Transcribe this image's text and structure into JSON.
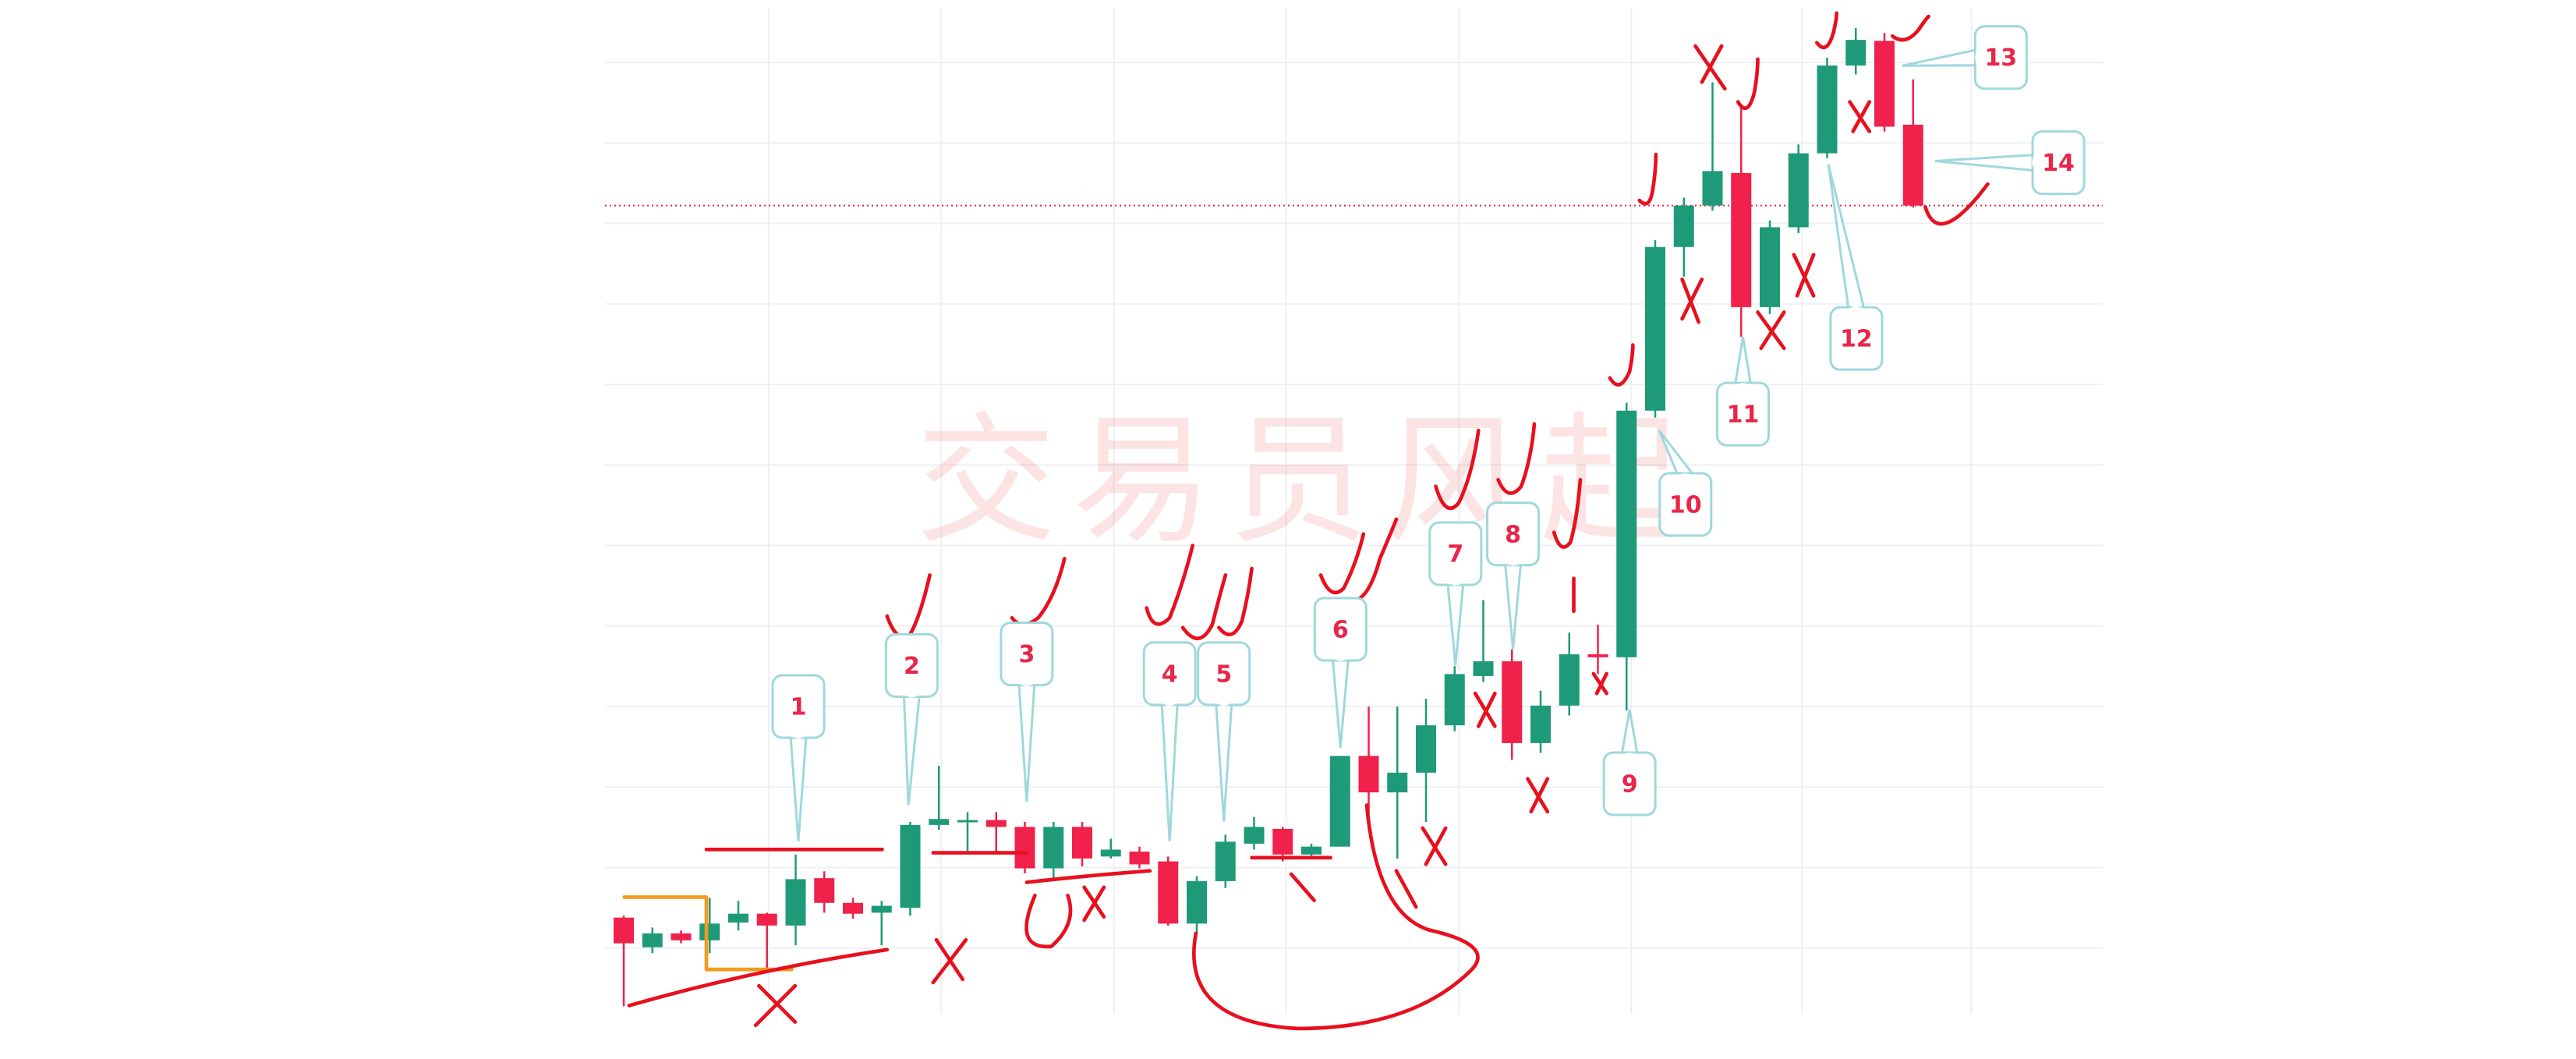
{
  "chart_data": {
    "type": "candlestick",
    "watermark": "交易员风起",
    "open": [
      10.3,
      7.3,
      8.7,
      8,
      9.8,
      10.7,
      9.5,
      14.3,
      11.8,
      10.8,
      11.3,
      19.7,
      20,
      20.2,
      19.5,
      15.3,
      19.5,
      16.5,
      17,
      16,
      9.7,
      14,
      17.8,
      19.3,
      16.7,
      17.5,
      26.7,
      23,
      25,
      29.8,
      34.8,
      36.3,
      28,
      31.8,
      37,
      36.7,
      61.7,
      78.3,
      82.5,
      85.8,
      72.2,
      80.3,
      87.8,
      96.7,
      99.2,
      90.7
    ],
    "high": [
      10.5,
      9.3,
      9,
      12.3,
      12,
      10.8,
      16.7,
      15,
      12.3,
      12,
      20,
      25.7,
      21,
      21,
      20,
      20,
      20,
      18.3,
      17.5,
      16.5,
      14.5,
      18.7,
      20.5,
      19.5,
      17.8,
      26.7,
      31.7,
      31.7,
      32.5,
      35.8,
      42.5,
      37.5,
      33.3,
      39.2,
      40,
      62.5,
      79,
      83.3,
      95,
      92.5,
      81,
      88.7,
      97.5,
      100.5,
      100,
      95.3
    ],
    "low": [
      1.3,
      6.7,
      7.7,
      6.7,
      9,
      5,
      7.5,
      10.8,
      10.2,
      7.5,
      10.5,
      19.2,
      17,
      17,
      14.8,
      14.2,
      15.5,
      16.3,
      15.3,
      9.5,
      8.7,
      13.3,
      17.2,
      16,
      16.3,
      17.5,
      19.2,
      16.3,
      20,
      29.2,
      34.2,
      26.3,
      27,
      30.8,
      35,
      31.3,
      61,
      75.3,
      82,
      69.2,
      71.5,
      79.7,
      87.3,
      95.8,
      90,
      82.3
    ],
    "close": [
      7.7,
      8.7,
      8,
      9.7,
      10.7,
      9.5,
      14.2,
      11.8,
      10.7,
      11.5,
      19.7,
      20.3,
      20.2,
      19.5,
      15.3,
      19.5,
      16.3,
      17.2,
      15.7,
      9.7,
      14,
      18,
      19.5,
      16.7,
      17.5,
      26.7,
      23,
      25,
      29.8,
      35,
      36.3,
      28,
      31.8,
      37,
      36.7,
      61.7,
      78.3,
      82.5,
      86,
      72.2,
      80.3,
      87.8,
      96.7,
      99.3,
      90.5,
      82.5
    ],
    "up_color": "#1f9a78",
    "down_color": "#f0214a",
    "ylim": [
      0,
      102
    ],
    "grid": true,
    "price_line": 82.5,
    "price_line_color": "#e8264a",
    "callouts": [
      "1",
      "2",
      "3",
      "4",
      "5",
      "6",
      "7",
      "8",
      "9",
      "10",
      "11",
      "12",
      "13",
      "14"
    ]
  }
}
